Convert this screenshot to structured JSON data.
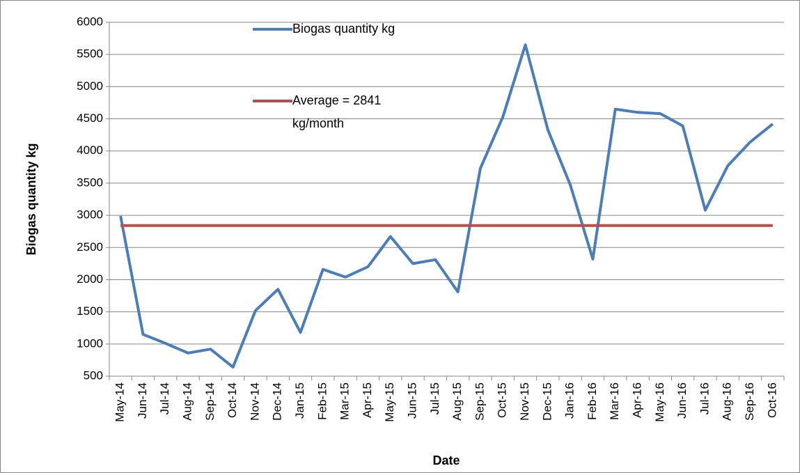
{
  "chart_data": {
    "type": "line",
    "x_label": "Date",
    "y_label": "Biogas quantity kg",
    "categories": [
      "May-14",
      "Jun-14",
      "Jul-14",
      "Aug-14",
      "Sep-14",
      "Oct-14",
      "Nov-14",
      "Dec-14",
      "Jan-15",
      "Feb-15",
      "Mar-15",
      "Apr-15",
      "May-15",
      "Jun-15",
      "Jul-15",
      "Aug-15",
      "Sep-15",
      "Oct-15",
      "Nov-15",
      "Dec-15",
      "Jan-16",
      "Feb-16",
      "Mar-16",
      "Apr-16",
      "May-16",
      "Jun-16",
      "Jul-16",
      "Aug-16",
      "Sep-16",
      "Oct-16"
    ],
    "series": [
      {
        "name": "Biogas quantity kg",
        "color": "#4a7ebb",
        "values": [
          2990,
          1150,
          1010,
          860,
          920,
          640,
          1520,
          1850,
          1180,
          2160,
          2040,
          2200,
          2670,
          2250,
          2310,
          1810,
          3730,
          4530,
          5650,
          4330,
          3470,
          2320,
          4650,
          4600,
          4580,
          4390,
          3080,
          3770,
          4140,
          4420
        ]
      },
      {
        "name": "Average = 2841 kg/month",
        "color": "#be4b48",
        "values": [
          2841,
          2841,
          2841,
          2841,
          2841,
          2841,
          2841,
          2841,
          2841,
          2841,
          2841,
          2841,
          2841,
          2841,
          2841,
          2841,
          2841,
          2841,
          2841,
          2841,
          2841,
          2841,
          2841,
          2841,
          2841,
          2841,
          2841,
          2841,
          2841,
          2841
        ]
      }
    ],
    "ylim": [
      500,
      6000
    ],
    "yticks": [
      500,
      1000,
      1500,
      2000,
      2500,
      3000,
      3500,
      4000,
      4500,
      5000,
      5500,
      6000
    ],
    "grid": true
  }
}
